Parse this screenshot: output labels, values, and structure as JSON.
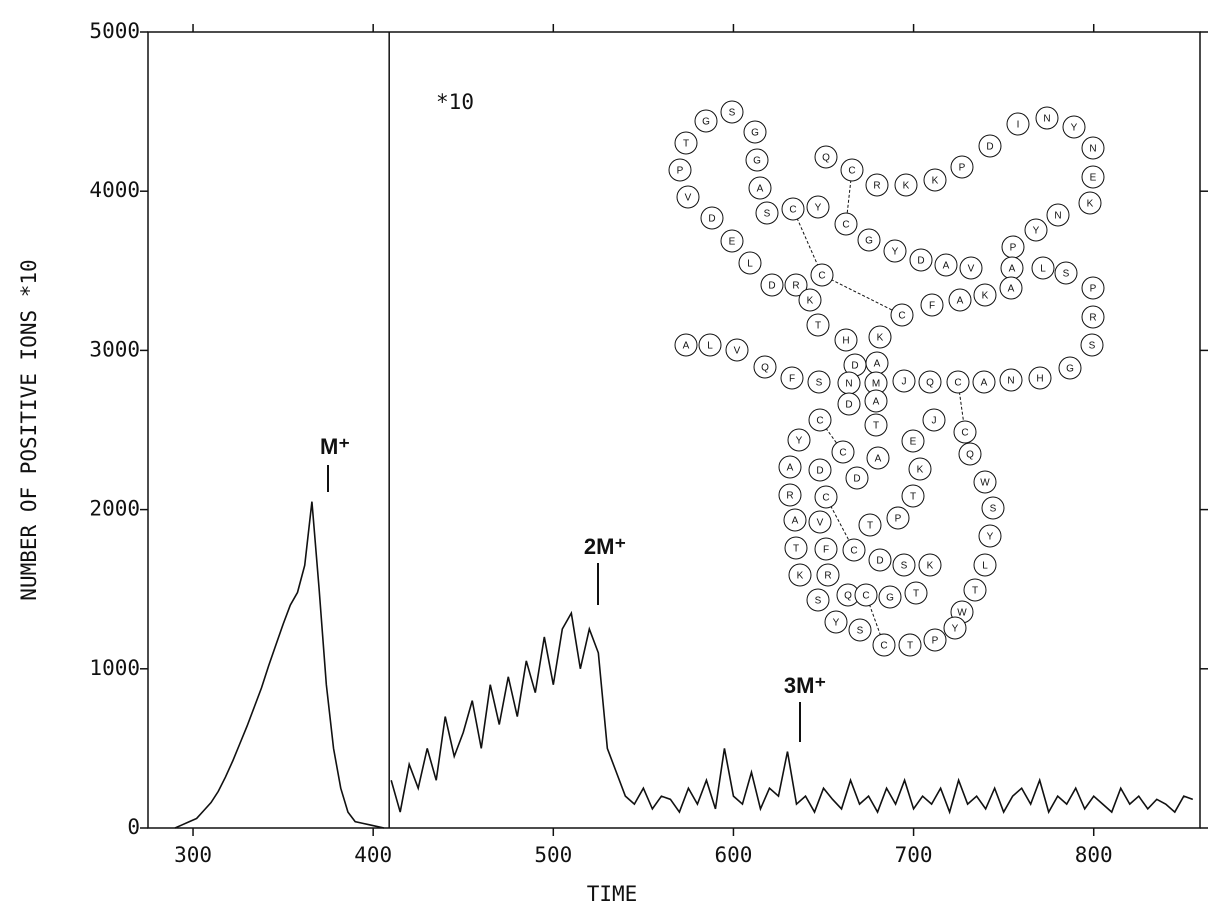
{
  "chart_data": {
    "type": "line",
    "xlabel": "TIME",
    "ylabel": "NUMBER OF POSITIVE IONS *10",
    "annotations": [
      "M⁺",
      "2M⁺",
      "3M⁺",
      "*10"
    ],
    "xlim": [
      275,
      859
    ],
    "ylim": [
      0,
      5000
    ],
    "xticks": [
      300,
      400,
      500,
      600,
      700,
      800
    ],
    "yticks": [
      0,
      1000,
      2000,
      3000,
      4000,
      5000
    ],
    "series": [
      {
        "color": "#111111",
        "x": [
          290,
          294,
          298,
          302,
          306,
          310,
          314,
          318,
          322,
          326,
          330,
          334,
          338,
          342,
          346,
          350,
          354,
          358,
          362,
          366,
          370,
          374,
          378,
          382,
          386,
          390,
          394,
          398,
          402,
          406
        ],
        "values": [
          0,
          20,
          40,
          60,
          110,
          160,
          230,
          320,
          420,
          530,
          640,
          760,
          880,
          1020,
          1150,
          1280,
          1400,
          1480,
          1650,
          2050,
          1500,
          900,
          500,
          250,
          100,
          40,
          30,
          20,
          10,
          0
        ]
      },
      {
        "color": "#111111",
        "x": [
          410,
          415,
          420,
          425,
          430,
          435,
          440,
          445,
          450,
          455,
          460,
          465,
          470,
          475,
          480,
          485,
          490,
          495,
          500,
          505,
          510,
          515,
          520,
          525,
          530,
          535,
          540,
          545,
          550,
          555,
          560,
          565,
          570,
          575,
          580,
          585,
          590,
          595,
          600,
          605,
          610,
          615,
          620,
          625,
          630,
          635,
          640,
          645,
          650,
          655,
          660,
          665,
          670,
          675,
          680,
          685,
          690,
          695,
          700,
          705,
          710,
          715,
          720,
          725,
          730,
          735,
          740,
          745,
          750,
          755,
          760,
          765,
          770,
          775,
          780,
          785,
          790,
          795,
          800,
          805,
          810,
          815,
          820,
          825,
          830,
          835,
          840,
          845,
          850,
          855
        ],
        "values": [
          300,
          100,
          400,
          250,
          500,
          300,
          700,
          450,
          600,
          800,
          500,
          900,
          650,
          950,
          700,
          1050,
          850,
          1200,
          900,
          1250,
          1350,
          1000,
          1250,
          1100,
          500,
          350,
          200,
          150,
          250,
          120,
          200,
          180,
          100,
          250,
          150,
          300,
          120,
          500,
          200,
          150,
          350,
          120,
          250,
          200,
          480,
          150,
          200,
          100,
          250,
          180,
          120,
          300,
          150,
          200,
          100,
          250,
          150,
          300,
          120,
          200,
          150,
          250,
          100,
          300,
          150,
          200,
          120,
          250,
          100,
          200,
          250,
          150,
          300,
          100,
          200,
          150,
          250,
          120,
          200,
          150,
          100,
          250,
          150,
          200,
          120,
          180,
          150,
          100,
          200,
          180
        ]
      }
    ]
  },
  "diagram": {
    "residues": [
      "T",
      "G",
      "S",
      "G",
      "I",
      "N",
      "Y",
      "D",
      "N",
      "G",
      "Q",
      "C",
      "P",
      "A",
      "R",
      "K",
      "K",
      "P",
      "E",
      "V",
      "S",
      "C",
      "Y",
      "K",
      "D",
      "C",
      "N",
      "G",
      "Y",
      "E",
      "Y",
      "D",
      "A",
      "V",
      "P",
      "A",
      "L",
      "S",
      "L",
      "D",
      "R",
      "C",
      "K",
      "A",
      "K",
      "A",
      "F",
      "C",
      "P",
      "T",
      "H",
      "K",
      "R",
      "A",
      "L",
      "V",
      "D",
      "A",
      "S",
      "Q",
      "F",
      "S",
      "N",
      "M",
      "J",
      "Q",
      "C",
      "A",
      "N",
      "H",
      "G",
      "D",
      "A",
      "C",
      "T",
      "J",
      "C",
      "Y",
      "C",
      "E",
      "A",
      "Q",
      "A",
      "D",
      "D",
      "K",
      "W",
      "R",
      "C",
      "T",
      "S",
      "A",
      "V",
      "T",
      "P",
      "Y",
      "T",
      "F",
      "C",
      "D",
      "S",
      "K",
      "L",
      "K",
      "R",
      "T",
      "S",
      "Q",
      "C",
      "G",
      "T",
      "W",
      "Y",
      "S",
      "C",
      "T",
      "P",
      "Y"
    ]
  }
}
